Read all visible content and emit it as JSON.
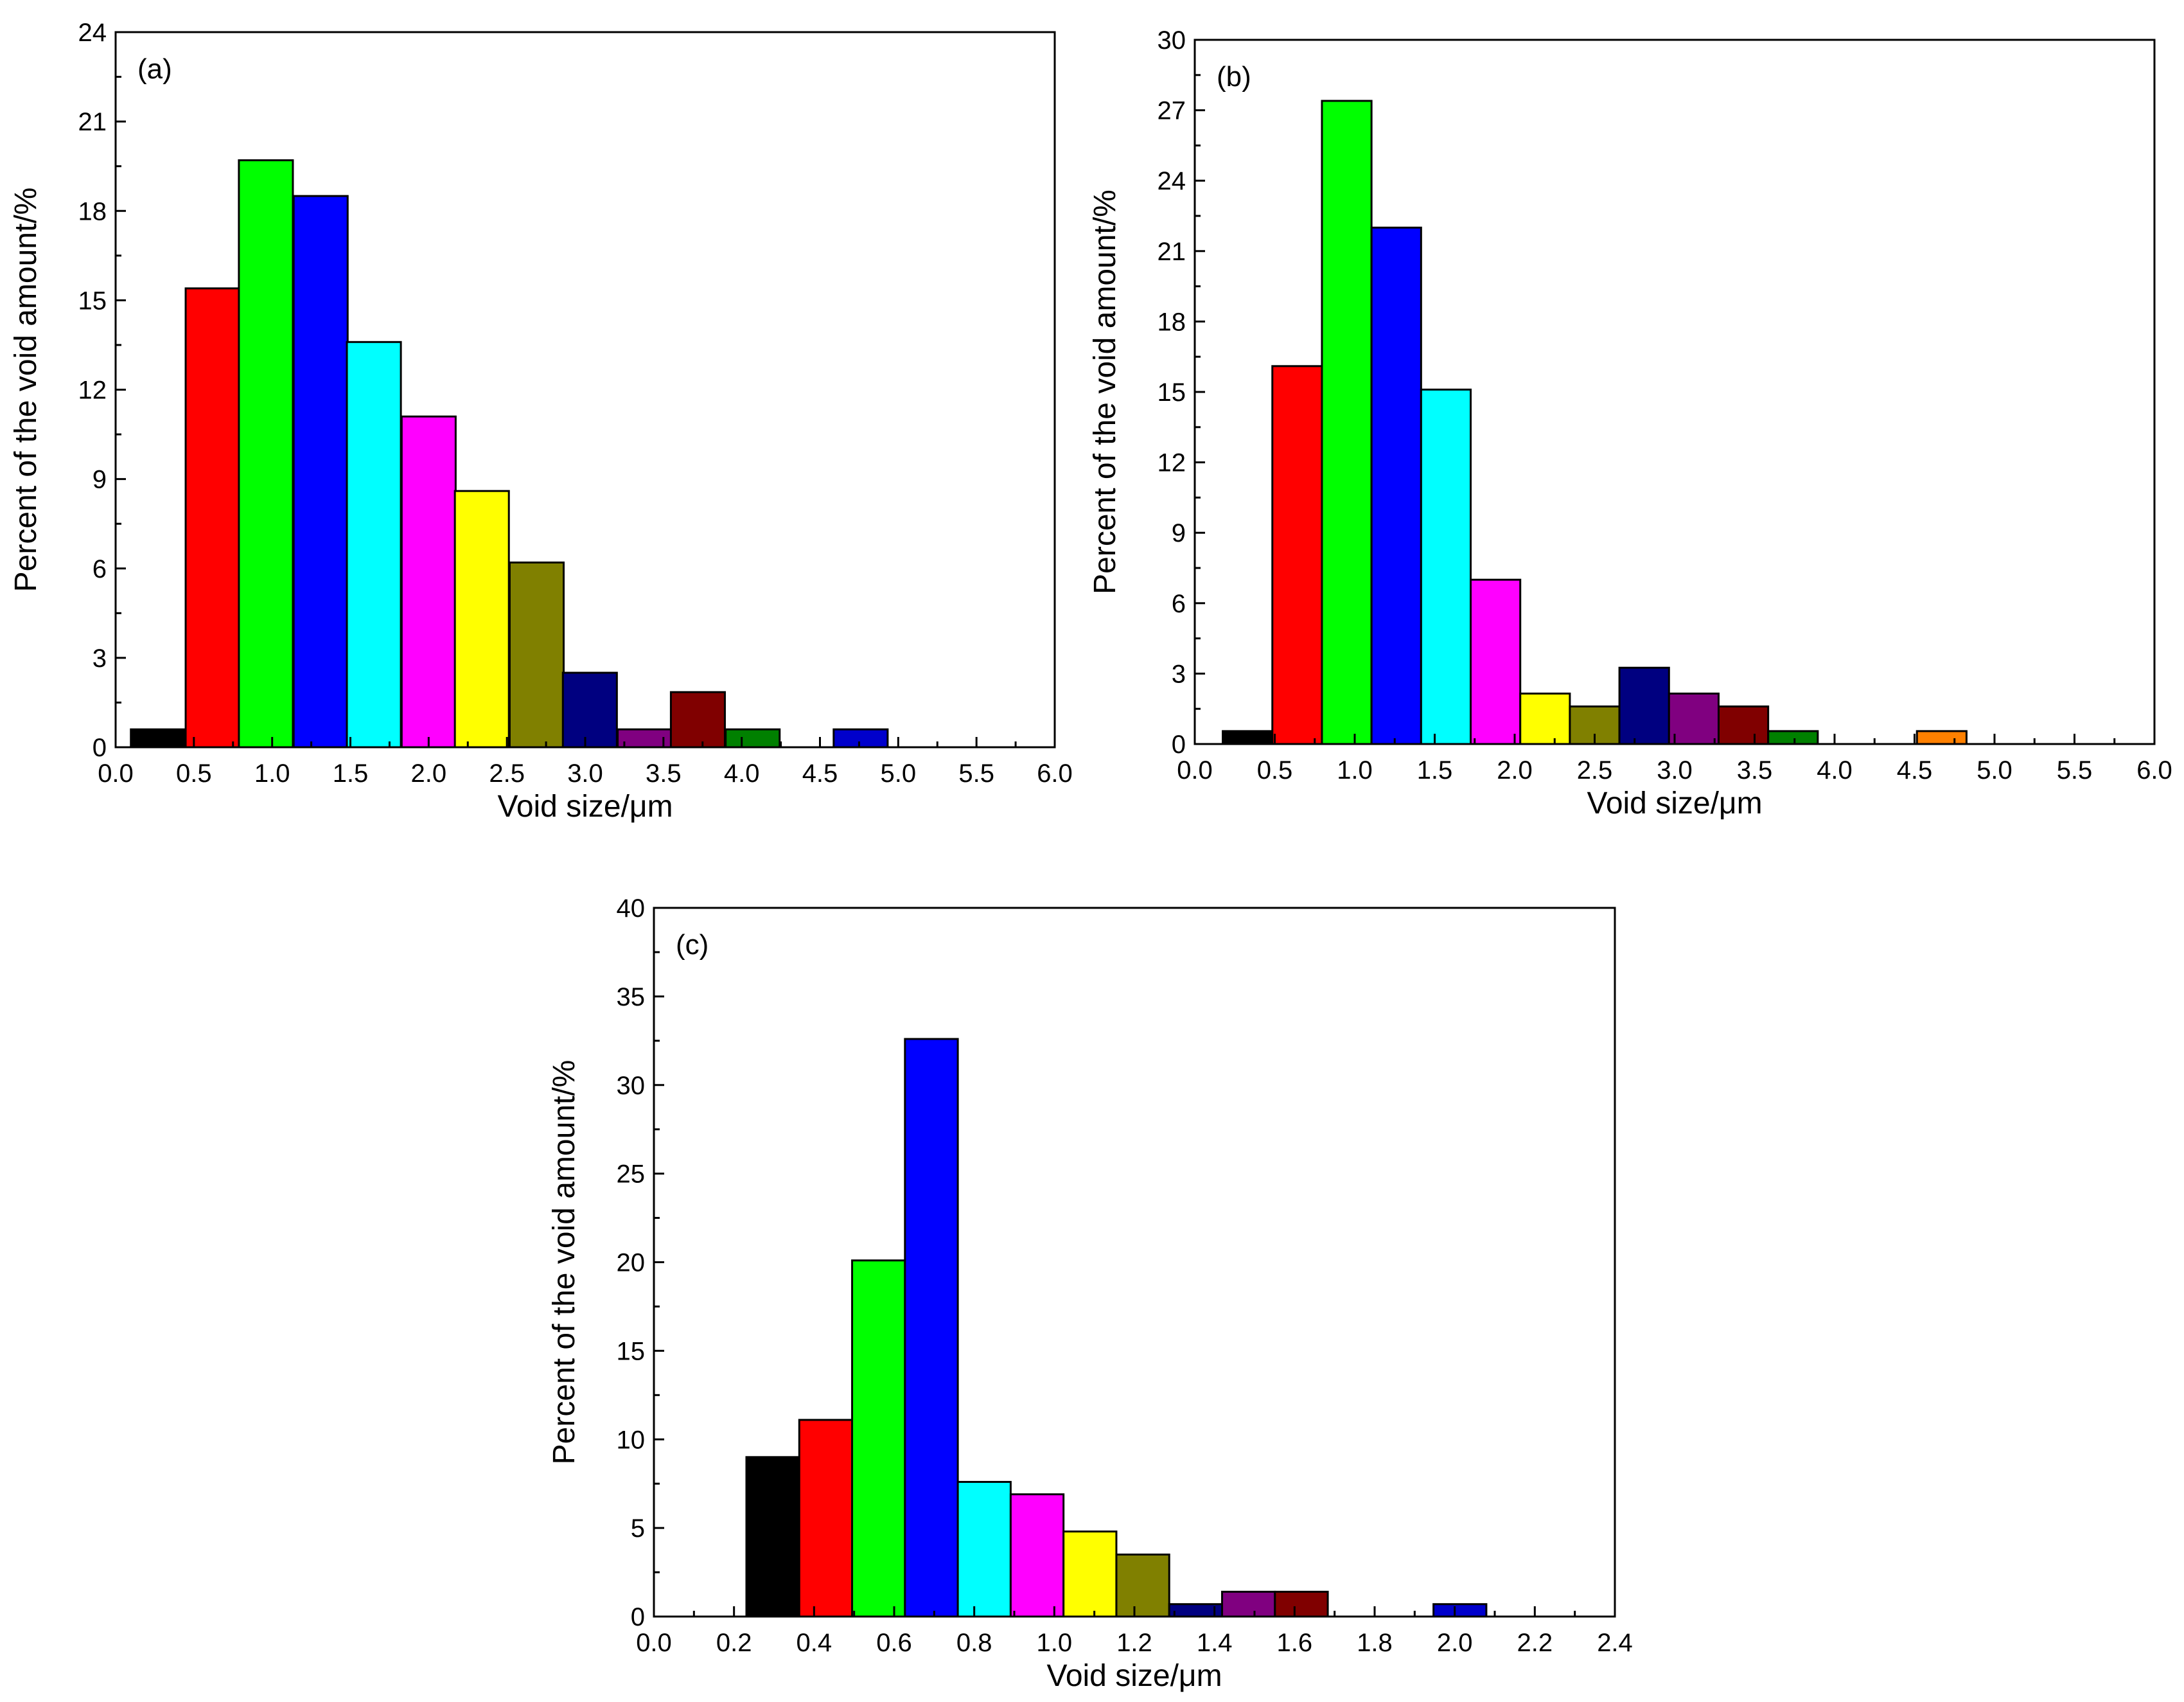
{
  "chart_data": [
    {
      "type": "bar",
      "panel_label": "(a)",
      "xlabel": "Void size/μm",
      "ylabel": "Percent of the void amount/%",
      "xlim": [
        0.0,
        6.0
      ],
      "ylim": [
        0,
        24
      ],
      "xticks": [
        0.0,
        0.5,
        1.0,
        1.5,
        2.0,
        2.5,
        3.0,
        3.5,
        4.0,
        4.5,
        5.0,
        5.5,
        6.0
      ],
      "xtick_labels": [
        "0.0",
        "0.5",
        "1.0",
        "1.5",
        "2.0",
        "2.5",
        "3.0",
        "3.5",
        "4.0",
        "4.5",
        "5.0",
        "5.5",
        "6.0"
      ],
      "yticks": [
        0,
        3,
        6,
        9,
        12,
        15,
        18,
        21,
        24
      ],
      "ytick_labels": [
        "0",
        "3",
        "6",
        "9",
        "12",
        "15",
        "18",
        "21",
        "24"
      ],
      "bin_width": 0.345,
      "bars": [
        {
          "x": 0.27,
          "value": 0.6,
          "color": "#000000"
        },
        {
          "x": 0.62,
          "value": 15.4,
          "color": "#FF0000"
        },
        {
          "x": 0.96,
          "value": 19.7,
          "color": "#00FF00"
        },
        {
          "x": 1.31,
          "value": 18.5,
          "color": "#0000FF"
        },
        {
          "x": 1.65,
          "value": 13.6,
          "color": "#00FFFF"
        },
        {
          "x": 2.0,
          "value": 11.1,
          "color": "#FF00FF"
        },
        {
          "x": 2.34,
          "value": 8.6,
          "color": "#FFFF00"
        },
        {
          "x": 2.69,
          "value": 6.2,
          "color": "#808000"
        },
        {
          "x": 3.03,
          "value": 2.5,
          "color": "#000080"
        },
        {
          "x": 3.38,
          "value": 0.6,
          "color": "#800080"
        },
        {
          "x": 3.72,
          "value": 1.85,
          "color": "#800000"
        },
        {
          "x": 4.07,
          "value": 0.6,
          "color": "#008000"
        },
        {
          "x": 4.76,
          "value": 0.6,
          "color": "#0000CC"
        }
      ]
    },
    {
      "type": "bar",
      "panel_label": "(b)",
      "xlabel": "Void size/μm",
      "ylabel": "Percent of the void amount/%",
      "xlim": [
        0.0,
        6.0
      ],
      "ylim": [
        0,
        30
      ],
      "xticks": [
        0.0,
        0.5,
        1.0,
        1.5,
        2.0,
        2.5,
        3.0,
        3.5,
        4.0,
        4.5,
        5.0,
        5.5,
        6.0
      ],
      "xtick_labels": [
        "0.0",
        "0.5",
        "1.0",
        "1.5",
        "2.0",
        "2.5",
        "3.0",
        "3.5",
        "4.0",
        "4.5",
        "5.0",
        "5.5",
        "6.0"
      ],
      "yticks": [
        0,
        3,
        6,
        9,
        12,
        15,
        18,
        21,
        24,
        27,
        30
      ],
      "ytick_labels": [
        "0",
        "3",
        "6",
        "9",
        "12",
        "15",
        "18",
        "21",
        "24",
        "27",
        "30"
      ],
      "bin_width": 0.31,
      "bars": [
        {
          "x": 0.33,
          "value": 0.55,
          "color": "#000000"
        },
        {
          "x": 0.64,
          "value": 16.1,
          "color": "#FF0000"
        },
        {
          "x": 0.95,
          "value": 27.4,
          "color": "#00FF00"
        },
        {
          "x": 1.26,
          "value": 22.0,
          "color": "#0000FF"
        },
        {
          "x": 1.57,
          "value": 15.1,
          "color": "#00FFFF"
        },
        {
          "x": 1.88,
          "value": 7.0,
          "color": "#FF00FF"
        },
        {
          "x": 2.19,
          "value": 2.15,
          "color": "#FFFF00"
        },
        {
          "x": 2.5,
          "value": 1.6,
          "color": "#808000"
        },
        {
          "x": 2.81,
          "value": 3.25,
          "color": "#000080"
        },
        {
          "x": 3.12,
          "value": 2.15,
          "color": "#800080"
        },
        {
          "x": 3.43,
          "value": 1.6,
          "color": "#800000"
        },
        {
          "x": 3.74,
          "value": 0.55,
          "color": "#008000"
        },
        {
          "x": 4.67,
          "value": 0.55,
          "color": "#FF8000"
        }
      ]
    },
    {
      "type": "bar",
      "panel_label": "(c)",
      "xlabel": "Void size/μm",
      "ylabel": "Percent of the void amount/%",
      "xlim": [
        0.0,
        2.4
      ],
      "ylim": [
        0,
        40
      ],
      "xticks": [
        0.0,
        0.2,
        0.4,
        0.6,
        0.8,
        1.0,
        1.2,
        1.4,
        1.6,
        1.8,
        2.0,
        2.2,
        2.4
      ],
      "xtick_labels": [
        "0.0",
        "0.2",
        "0.4",
        "0.6",
        "0.8",
        "1.0",
        "1.2",
        "1.4",
        "1.6",
        "1.8",
        "2.0",
        "2.2",
        "2.4"
      ],
      "yticks": [
        0,
        5,
        10,
        15,
        20,
        25,
        30,
        35,
        40
      ],
      "ytick_labels": [
        "0",
        "5",
        "10",
        "15",
        "20",
        "25",
        "30",
        "35",
        "40"
      ],
      "bin_width": 0.132,
      "bars": [
        {
          "x": 0.297,
          "value": 9.0,
          "color": "#000000"
        },
        {
          "x": 0.429,
          "value": 11.1,
          "color": "#FF0000"
        },
        {
          "x": 0.561,
          "value": 20.1,
          "color": "#00FF00"
        },
        {
          "x": 0.693,
          "value": 32.6,
          "color": "#0000FF"
        },
        {
          "x": 0.825,
          "value": 7.6,
          "color": "#00FFFF"
        },
        {
          "x": 0.957,
          "value": 6.9,
          "color": "#FF00FF"
        },
        {
          "x": 1.089,
          "value": 4.8,
          "color": "#FFFF00"
        },
        {
          "x": 1.221,
          "value": 3.5,
          "color": "#808000"
        },
        {
          "x": 1.353,
          "value": 0.7,
          "color": "#000080"
        },
        {
          "x": 1.485,
          "value": 1.4,
          "color": "#800080"
        },
        {
          "x": 1.617,
          "value": 1.4,
          "color": "#800000"
        },
        {
          "x": 2.013,
          "value": 0.7,
          "color": "#0000CC"
        }
      ]
    }
  ]
}
